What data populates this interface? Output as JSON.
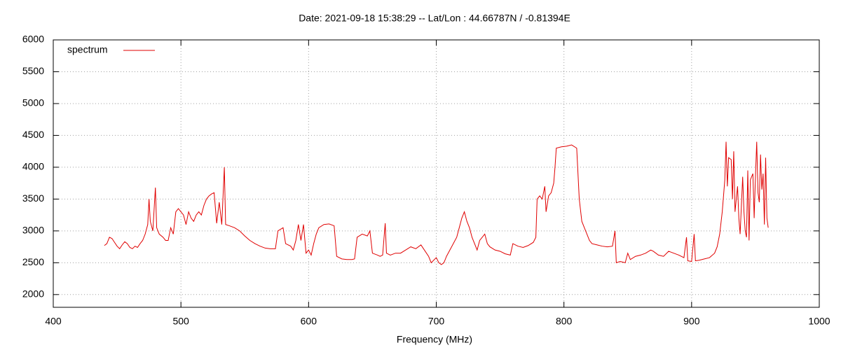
{
  "chart_data": {
    "type": "line",
    "title": "Date: 2021-09-18 15:38:29  --  Lat/Lon : 44.66787N / -0.81394E",
    "x_label": "Frequency (MHz)",
    "xlim": [
      400,
      1000
    ],
    "xticks": [
      400,
      500,
      600,
      700,
      800,
      900,
      1000
    ],
    "ylim": [
      1800,
      6000
    ],
    "yticks": [
      2000,
      2500,
      3000,
      3500,
      4000,
      4500,
      5000,
      5500,
      6000
    ],
    "grid": true,
    "legend": "top-left",
    "x": [
      440,
      442,
      444,
      446,
      448,
      450,
      452,
      454,
      456,
      458,
      460,
      462,
      464,
      466,
      468,
      470,
      472,
      474,
      475,
      476,
      478,
      480,
      481,
      483,
      486,
      488,
      490,
      492,
      494,
      496,
      498,
      500,
      502,
      504,
      506,
      508,
      510,
      512,
      514,
      516,
      518,
      520,
      522,
      524,
      526,
      528,
      530,
      532,
      534,
      535,
      538,
      542,
      546,
      550,
      554,
      558,
      562,
      566,
      570,
      574,
      576,
      580,
      582,
      586,
      588,
      590,
      592,
      594,
      596,
      598,
      600,
      602,
      604,
      606,
      608,
      612,
      616,
      620,
      622,
      626,
      630,
      634,
      636,
      638,
      642,
      646,
      648,
      650,
      654,
      656,
      658,
      660,
      661,
      664,
      668,
      672,
      676,
      680,
      684,
      688,
      690,
      694,
      696,
      700,
      702,
      704,
      706,
      708,
      712,
      716,
      718,
      720,
      722,
      724,
      726,
      728,
      730,
      732,
      734,
      736,
      738,
      740,
      742,
      746,
      750,
      754,
      758,
      760,
      764,
      768,
      772,
      776,
      778,
      779,
      781,
      783,
      785,
      786,
      788,
      790,
      792,
      793,
      794,
      798,
      802,
      806,
      810,
      812,
      814,
      816,
      818,
      820,
      822,
      826,
      830,
      834,
      838,
      840,
      841,
      844,
      848,
      850,
      852,
      856,
      860,
      864,
      868,
      870,
      874,
      878,
      882,
      886,
      890,
      894,
      896,
      897,
      900,
      902,
      903,
      906,
      910,
      914,
      918,
      920,
      922,
      924,
      926,
      927,
      928,
      929,
      931,
      932,
      933,
      934,
      936,
      937,
      938,
      940,
      941,
      942,
      943,
      944,
      945,
      946,
      948,
      949,
      950,
      951,
      952,
      953,
      954,
      955,
      956,
      957,
      958,
      959,
      960
    ],
    "series": [
      {
        "name": "spectrum",
        "color": "#e00000",
        "values": [
          2770,
          2800,
          2900,
          2880,
          2820,
          2760,
          2720,
          2780,
          2830,
          2800,
          2740,
          2720,
          2760,
          2740,
          2800,
          2850,
          2950,
          3100,
          3500,
          3150,
          3000,
          3680,
          3050,
          2950,
          2900,
          2850,
          2850,
          3050,
          2950,
          3300,
          3350,
          3300,
          3250,
          3100,
          3300,
          3200,
          3150,
          3250,
          3300,
          3250,
          3400,
          3500,
          3550,
          3580,
          3600,
          3120,
          3450,
          3100,
          4000,
          3100,
          3080,
          3050,
          3000,
          2920,
          2850,
          2800,
          2760,
          2730,
          2720,
          2720,
          3000,
          3050,
          2800,
          2760,
          2700,
          2850,
          3100,
          2850,
          3100,
          2650,
          2700,
          2620,
          2800,
          2950,
          3050,
          3100,
          3110,
          3080,
          2600,
          2560,
          2550,
          2550,
          2560,
          2900,
          2950,
          2920,
          3000,
          2650,
          2620,
          2600,
          2620,
          3120,
          2650,
          2620,
          2650,
          2650,
          2700,
          2750,
          2720,
          2780,
          2720,
          2600,
          2500,
          2580,
          2500,
          2470,
          2500,
          2600,
          2750,
          2900,
          3050,
          3200,
          3300,
          3150,
          3050,
          2900,
          2800,
          2700,
          2850,
          2900,
          2950,
          2800,
          2750,
          2700,
          2680,
          2640,
          2620,
          2800,
          2760,
          2740,
          2770,
          2820,
          2900,
          3500,
          3550,
          3500,
          3700,
          3300,
          3550,
          3600,
          3750,
          4000,
          4300,
          4320,
          4330,
          4350,
          4300,
          3500,
          3150,
          3050,
          2950,
          2850,
          2800,
          2780,
          2760,
          2750,
          2760,
          3000,
          2500,
          2520,
          2500,
          2650,
          2550,
          2600,
          2620,
          2650,
          2700,
          2680,
          2620,
          2600,
          2680,
          2650,
          2620,
          2580,
          2900,
          2530,
          2520,
          2950,
          2530,
          2540,
          2560,
          2580,
          2650,
          2750,
          2950,
          3300,
          3800,
          4400,
          3700,
          4150,
          4120,
          3500,
          4250,
          3300,
          3700,
          3200,
          2950,
          3850,
          3300,
          3000,
          2900,
          3950,
          2850,
          3800,
          3900,
          3200,
          3850,
          4400,
          3600,
          3450,
          4200,
          3650,
          3900,
          3100,
          4150,
          3200,
          3050
        ]
      }
    ]
  }
}
